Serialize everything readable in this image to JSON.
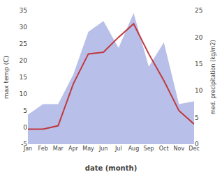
{
  "chart_data": {
    "type": "line",
    "xlabel": "date (month)",
    "ylabel": "max temp (C)",
    "y2label": "med. precipitation (kg/m2)",
    "categories": [
      "Jan",
      "Feb",
      "Mar",
      "Apr",
      "May",
      "Jun",
      "Jul",
      "Aug",
      "Sep",
      "Oct",
      "Nov",
      "Dec"
    ],
    "series": [
      {
        "type": "area",
        "axis": "y2",
        "color": "#b8bfe8",
        "values": [
          5.5,
          7.5,
          7.5,
          13,
          21,
          23,
          18,
          24.5,
          14.5,
          19,
          7.5,
          8
        ]
      },
      {
        "type": "line",
        "color": "#c0393f",
        "values": [
          -0.5,
          -0.5,
          0.5,
          13,
          22,
          22.5,
          27,
          31,
          22,
          14,
          5,
          1
        ]
      }
    ],
    "ylim": [
      -5,
      35
    ],
    "yticks": [
      -5,
      0,
      5,
      10,
      15,
      20,
      25,
      30,
      35
    ],
    "y2lim": [
      0,
      25
    ],
    "y2ticks": [
      0,
      5,
      10,
      15,
      20,
      25
    ],
    "grid": false
  }
}
